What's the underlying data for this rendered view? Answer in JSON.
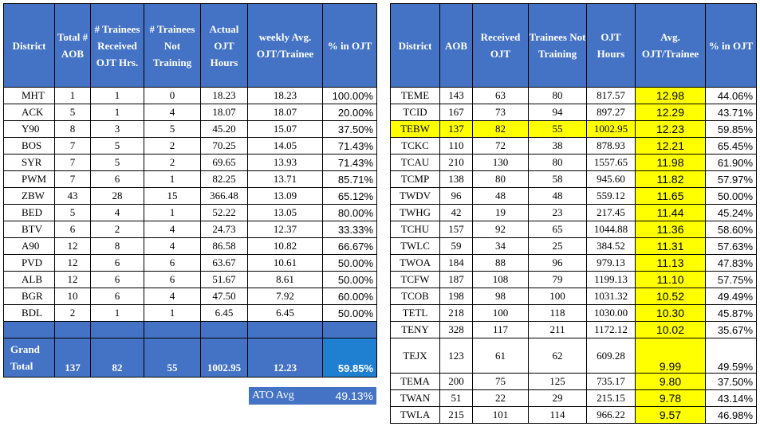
{
  "left_table": {
    "headers": [
      "District",
      "Total # AOB",
      "# Trainees Received OJT Hrs.",
      "# Trainees Not Training",
      "Actual OJT Hours",
      "weekly Avg. OJT/Trainee",
      "% in OJT"
    ],
    "rows": [
      [
        "MHT",
        "1",
        "1",
        "0",
        "18.23",
        "18.23",
        "100.00%"
      ],
      [
        "ACK",
        "5",
        "1",
        "4",
        "18.07",
        "18.07",
        "20.00%"
      ],
      [
        "Y90",
        "8",
        "3",
        "5",
        "45.20",
        "15.07",
        "37.50%"
      ],
      [
        "BOS",
        "7",
        "5",
        "2",
        "70.25",
        "14.05",
        "71.43%"
      ],
      [
        "SYR",
        "7",
        "5",
        "2",
        "69.65",
        "13.93",
        "71.43%"
      ],
      [
        "PWM",
        "7",
        "6",
        "1",
        "82.25",
        "13.71",
        "85.71%"
      ],
      [
        "ZBW",
        "43",
        "28",
        "15",
        "366.48",
        "13.09",
        "65.12%"
      ],
      [
        "BED",
        "5",
        "4",
        "1",
        "52.22",
        "13.05",
        "80.00%"
      ],
      [
        "BTV",
        "6",
        "2",
        "4",
        "24.73",
        "12.37",
        "33.33%"
      ],
      [
        "A90",
        "12",
        "8",
        "4",
        "86.58",
        "10.82",
        "66.67%"
      ],
      [
        "PVD",
        "12",
        "6",
        "6",
        "63.67",
        "10.61",
        "50.00%"
      ],
      [
        "ALB",
        "12",
        "6",
        "6",
        "51.67",
        "8.61",
        "50.00%"
      ],
      [
        "BGR",
        "10",
        "6",
        "4",
        "47.50",
        "7.92",
        "60.00%"
      ],
      [
        "BDL",
        "2",
        "1",
        "1",
        "6.45",
        "6.45",
        "50.00%"
      ]
    ],
    "grand_total": [
      "Grand Total",
      "137",
      "82",
      "55",
      "1002.95",
      "12.23",
      "59.85%"
    ],
    "ato_avg": {
      "label": "ATO Avg",
      "value": "49.13%"
    }
  },
  "right_table": {
    "headers": [
      "District",
      "AOB",
      "Received OJT",
      "Trainees Not Training",
      "OJT Hours",
      "Avg. OJT/Trainee",
      "% in OJT"
    ],
    "rows": [
      [
        "TEME",
        "143",
        "63",
        "80",
        "817.57",
        "12.98",
        "44.06%"
      ],
      [
        "TCID",
        "167",
        "73",
        "94",
        "897.27",
        "12.29",
        "43.71%"
      ],
      [
        "TEBW",
        "137",
        "82",
        "55",
        "1002.95",
        "12.23",
        "59.85%"
      ],
      [
        "TCKC",
        "110",
        "72",
        "38",
        "878.93",
        "12.21",
        "65.45%"
      ],
      [
        "TCAU",
        "210",
        "130",
        "80",
        "1557.65",
        "11.98",
        "61.90%"
      ],
      [
        "TCMP",
        "138",
        "80",
        "58",
        "945.60",
        "11.82",
        "57.97%"
      ],
      [
        "TWDV",
        "96",
        "48",
        "48",
        "559.12",
        "11.65",
        "50.00%"
      ],
      [
        "TWHG",
        "42",
        "19",
        "23",
        "217.45",
        "11.44",
        "45.24%"
      ],
      [
        "TCHU",
        "157",
        "92",
        "65",
        "1044.88",
        "11.36",
        "58.60%"
      ],
      [
        "TWLC",
        "59",
        "34",
        "25",
        "384.52",
        "11.31",
        "57.63%"
      ],
      [
        "TWOA",
        "184",
        "88",
        "96",
        "979.13",
        "11.13",
        "47.83%"
      ],
      [
        "TCFW",
        "187",
        "108",
        "79",
        "1199.13",
        "11.10",
        "57.75%"
      ],
      [
        "TCOB",
        "198",
        "98",
        "100",
        "1031.32",
        "10.52",
        "49.49%"
      ],
      [
        "TETL",
        "218",
        "100",
        "118",
        "1030.00",
        "10.30",
        "45.87%"
      ],
      [
        "TENY",
        "328",
        "117",
        "211",
        "1172.12",
        "10.02",
        "35.67%"
      ],
      [
        "TEJX",
        "123",
        "61",
        "62",
        "609.28",
        "9.99",
        "49.59%"
      ],
      [
        "TEMA",
        "200",
        "75",
        "125",
        "735.17",
        "9.80",
        "37.50%"
      ],
      [
        "TWAN",
        "51",
        "22",
        "29",
        "215.15",
        "9.78",
        "43.14%"
      ],
      [
        "TWLA",
        "215",
        "101",
        "114",
        "966.22",
        "9.57",
        "46.98%"
      ]
    ],
    "highlighted_row": "TEBW",
    "highlight_color": "#ffff00"
  },
  "colors": {
    "header_blue": "#4472c4",
    "total_highlight": "#1f7fd0"
  }
}
